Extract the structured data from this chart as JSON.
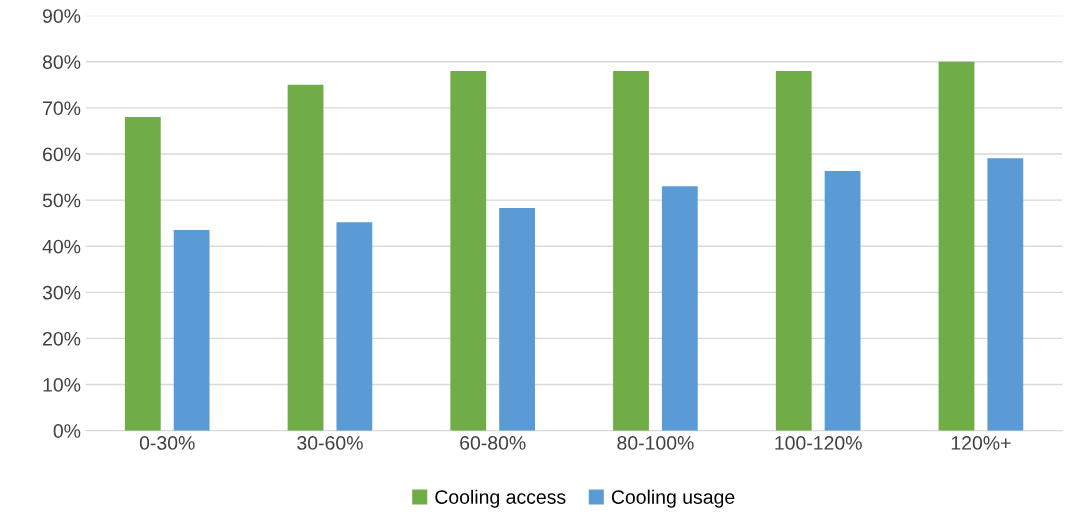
{
  "chart_data": {
    "type": "bar",
    "categories": [
      "0-30%",
      "30-60%",
      "60-80%",
      "80-100%",
      "100-120%",
      "120%+"
    ],
    "series": [
      {
        "name": "Cooling access",
        "color": "#70ad47",
        "values": [
          68,
          75,
          78,
          78,
          78,
          80
        ]
      },
      {
        "name": "Cooling usage",
        "color": "#5b9bd5",
        "values": [
          43.5,
          45.2,
          48.3,
          53,
          56.3,
          59.1
        ]
      }
    ],
    "ylim": [
      0,
      90
    ],
    "yticks": [
      {
        "value": 0,
        "label": "0%"
      },
      {
        "value": 10,
        "label": "10%"
      },
      {
        "value": 20,
        "label": "20%"
      },
      {
        "value": 30,
        "label": "30%"
      },
      {
        "value": 40,
        "label": "40%"
      },
      {
        "value": 50,
        "label": "50%"
      },
      {
        "value": 60,
        "label": "60%"
      },
      {
        "value": 70,
        "label": "70%"
      },
      {
        "value": 80,
        "label": "80%"
      },
      {
        "value": 90,
        "label": "90%"
      }
    ],
    "grid": "y",
    "legend": "bottom"
  }
}
